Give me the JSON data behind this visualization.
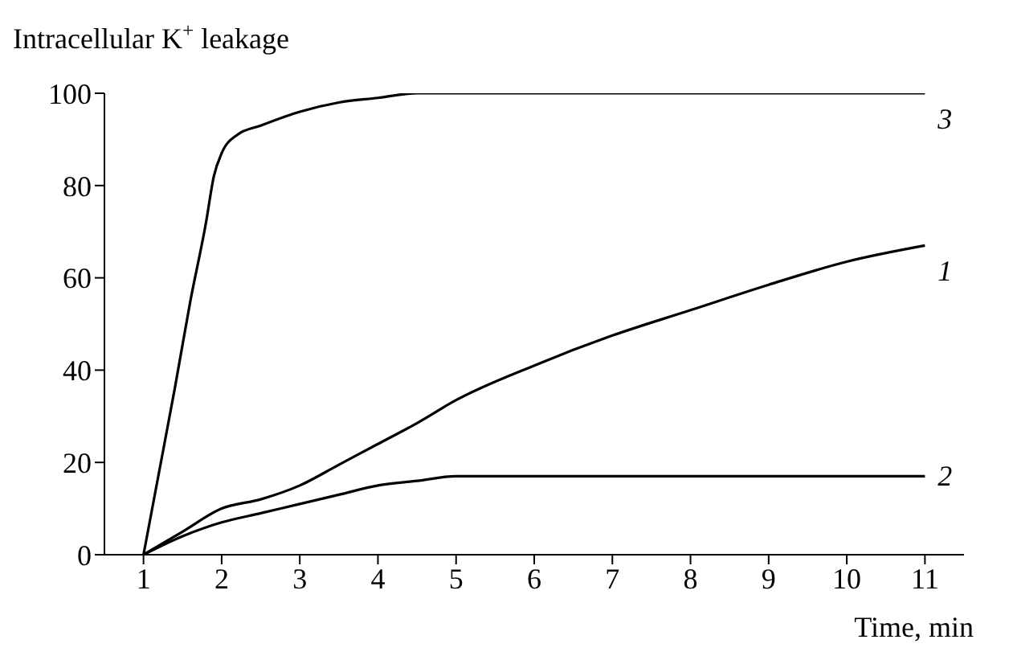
{
  "chart_data": {
    "type": "line",
    "ylabel": "Intracellular K$^{+}$ leakage",
    "xlabel": "Time, min",
    "xlim": [
      0.5,
      11.5
    ],
    "xticks": [
      1,
      2,
      3,
      4,
      5,
      6,
      7,
      8,
      9,
      10,
      11
    ],
    "ylim": [
      0,
      100
    ],
    "yticks": [
      0,
      20,
      40,
      60,
      80,
      100
    ],
    "grid": false,
    "legend": false,
    "marker": "none",
    "line_style": "solid",
    "series": [
      {
        "name": "1",
        "color": "#000000",
        "x": [
          1,
          1.5,
          2,
          2.5,
          3,
          3.5,
          4,
          4.5,
          5,
          6,
          7,
          8,
          9,
          10,
          11
        ],
        "values": [
          0,
          5,
          10,
          12,
          15,
          19.5,
          24,
          28.5,
          33.5,
          41,
          47.5,
          53,
          58.5,
          63.5,
          67
        ]
      },
      {
        "name": "2",
        "color": "#000000",
        "x": [
          1,
          1.5,
          2,
          2.5,
          3,
          3.5,
          4,
          4.5,
          5,
          11
        ],
        "values": [
          0,
          4,
          7,
          9,
          11,
          13,
          15,
          16,
          17,
          17
        ]
      },
      {
        "name": "3",
        "color": "#000000",
        "x": [
          1,
          1.2,
          1.4,
          1.6,
          1.8,
          1.9,
          2,
          2.2,
          2.5,
          3,
          3.5,
          4,
          4.5,
          11
        ],
        "values": [
          0,
          18,
          36,
          55,
          72,
          82,
          87,
          91,
          93,
          96,
          98,
          99,
          100,
          100
        ]
      }
    ]
  }
}
